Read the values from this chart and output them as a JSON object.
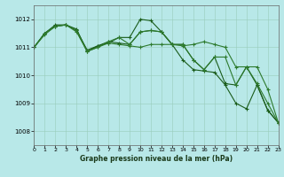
{
  "title": "Graphe pression niveau de la mer (hPa)",
  "background_color": "#b8e8e8",
  "grid_color": "#99ccbb",
  "line_colors": [
    "#1a5c1a",
    "#1a5c1a",
    "#2d7a2d",
    "#2d7a2d"
  ],
  "xlim": [
    0,
    23
  ],
  "ylim": [
    1007.5,
    1012.5
  ],
  "yticks": [
    1008,
    1009,
    1010,
    1011,
    1012
  ],
  "xticks": [
    0,
    1,
    2,
    3,
    4,
    5,
    6,
    7,
    8,
    9,
    10,
    11,
    12,
    13,
    14,
    15,
    16,
    17,
    18,
    19,
    20,
    21,
    22,
    23
  ],
  "series": [
    [
      1011.0,
      1011.5,
      1011.8,
      1011.8,
      1011.6,
      1010.9,
      1011.05,
      1011.2,
      1011.15,
      1011.1,
      1011.55,
      1011.6,
      1011.55,
      1011.1,
      1011.1,
      1010.55,
      1010.2,
      1010.65,
      1009.7,
      1009.65,
      1010.3,
      1009.65,
      1008.75,
      1008.3
    ],
    [
      1011.0,
      1011.5,
      1011.75,
      1011.8,
      1011.65,
      1010.85,
      1011.05,
      1011.15,
      1011.35,
      1011.35,
      1012.0,
      1011.95,
      1011.55,
      1011.1,
      1010.55,
      1010.2,
      1010.15,
      1010.1,
      1009.65,
      1009.0,
      1008.8,
      1009.65,
      1008.75,
      1008.3
    ],
    [
      1011.0,
      1011.5,
      1011.75,
      1011.8,
      1011.6,
      1010.85,
      1011.0,
      1011.2,
      1011.35,
      1011.1,
      1011.55,
      1011.6,
      1011.55,
      1011.1,
      1011.1,
      1010.55,
      1010.2,
      1010.65,
      1010.65,
      1009.65,
      1010.3,
      1010.3,
      1009.5,
      1008.3
    ],
    [
      1011.0,
      1011.45,
      1011.75,
      1011.8,
      1011.55,
      1010.85,
      1011.0,
      1011.15,
      1011.1,
      1011.05,
      1011.0,
      1011.1,
      1011.1,
      1011.1,
      1011.05,
      1011.1,
      1011.2,
      1011.1,
      1011.0,
      1010.3,
      1010.3,
      1009.7,
      1009.0,
      1008.3
    ]
  ]
}
